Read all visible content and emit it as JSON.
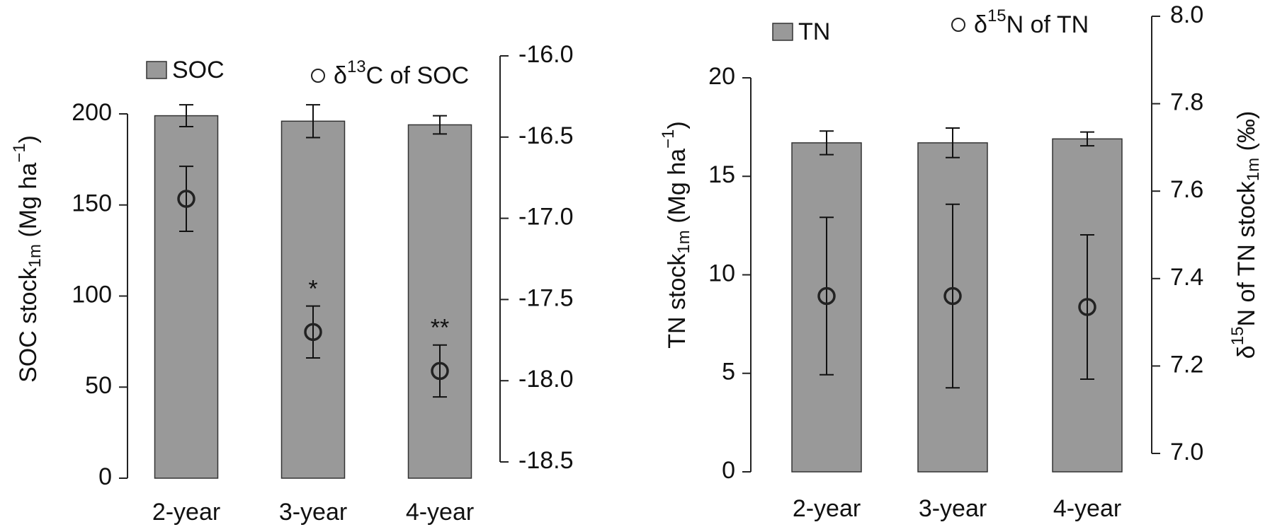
{
  "chart_data": [
    {
      "type": "bar",
      "categories": [
        "2-year",
        "3-year",
        "4-year"
      ],
      "series": [
        {
          "name": "SOC",
          "color": "#999999",
          "values": [
            199,
            196,
            194
          ],
          "errors": [
            6,
            9,
            5
          ]
        },
        {
          "name": [
            {
              "text": "δ"
            },
            {
              "sup": "13"
            },
            {
              "text": "C of SOC"
            }
          ],
          "axis": "y2",
          "marker": "circle",
          "color": "#222222",
          "values": [
            -16.88,
            -17.7,
            -17.94
          ],
          "errors": [
            0.2,
            0.16,
            0.16
          ],
          "annotations": [
            null,
            "*",
            "**"
          ]
        }
      ],
      "ylabel": [
        {
          "text": "SOC stock"
        },
        {
          "sub": "1m"
        },
        {
          "text": " (Mg ha"
        },
        {
          "sup": "−1"
        },
        {
          "text": ")"
        }
      ],
      "ylim": [
        0,
        200
      ],
      "yticks": [
        0,
        50,
        100,
        150,
        200
      ],
      "y2lim": [
        -18.5,
        -16.0
      ],
      "y2ticks": [
        {
          "value": -16,
          "label": "-16.0"
        },
        -16.5,
        {
          "value": -17,
          "label": "-17.0"
        },
        -17.5,
        {
          "value": -18,
          "label": "-18.0"
        },
        -18.5
      ]
    },
    {
      "type": "bar",
      "categories": [
        "2-year",
        "3-year",
        "4-year"
      ],
      "series": [
        {
          "name": "TN",
          "color": "#999999",
          "values": [
            16.7,
            16.7,
            16.9
          ],
          "errors": [
            0.6,
            0.75,
            0.35
          ]
        },
        {
          "name": [
            {
              "text": "δ"
            },
            {
              "sup": "15"
            },
            {
              "text": "N of TN"
            }
          ],
          "axis": "y2",
          "marker": "circle",
          "color": "#222222",
          "values": [
            7.36,
            7.36,
            7.335
          ],
          "errors": [
            0.18,
            0.21,
            0.165
          ]
        }
      ],
      "ylabel": [
        {
          "text": "TN stock"
        },
        {
          "sub": "1m"
        },
        {
          "text": " (Mg ha"
        },
        {
          "sup": "−1"
        },
        {
          "text": ")"
        }
      ],
      "y2label": [
        {
          "text": "δ"
        },
        {
          "sup": "15"
        },
        {
          "text": "N of TN stock"
        },
        {
          "sub": "1m"
        },
        {
          "text": " (‰)"
        }
      ],
      "ylim": [
        0,
        20
      ],
      "yticks": [
        0,
        5,
        10,
        15,
        20
      ],
      "y2lim": [
        7.0,
        8.0
      ],
      "y2ticks": [
        {
          "value": 7,
          "label": "7.0"
        },
        7.2,
        7.4,
        7.6,
        7.8,
        {
          "value": 8,
          "label": "8.0"
        }
      ]
    }
  ]
}
